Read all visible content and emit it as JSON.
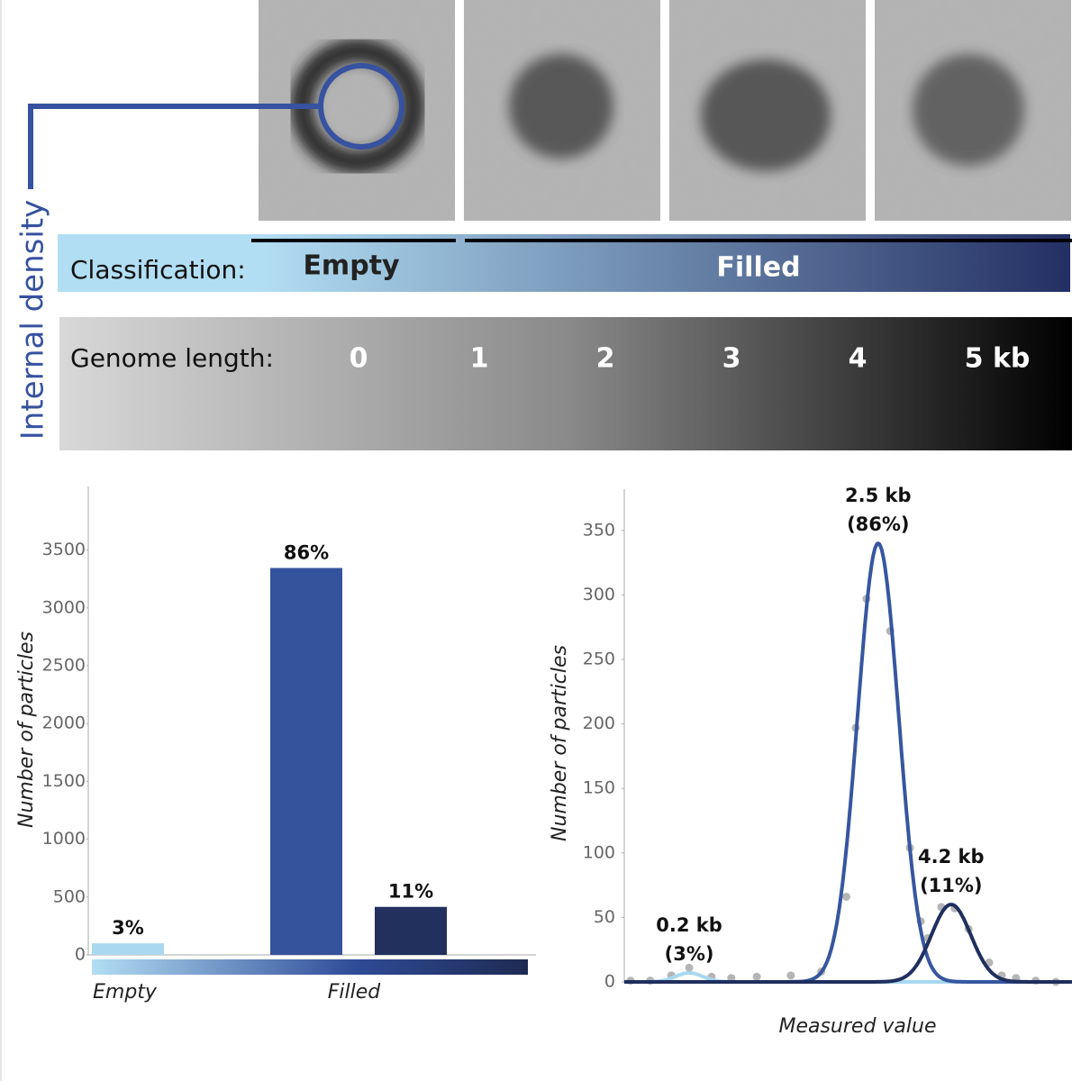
{
  "figure": {
    "side_label": "Internal density",
    "classification": {
      "label": "Classification:",
      "classes": [
        "Empty",
        "Filled"
      ]
    },
    "genome_length": {
      "label": "Genome length:",
      "ticks": [
        "0",
        "1",
        "2",
        "3",
        "4",
        "5 kb"
      ]
    }
  },
  "chart_data": [
    {
      "type": "bar",
      "y_label": "Number of particles",
      "categories": [
        null,
        null,
        null
      ],
      "values": [
        100,
        3345,
        415
      ],
      "annotations": [
        "3%",
        "86%",
        "11%"
      ],
      "colors": [
        "#a9d8f0",
        "#34539c",
        "#22305e"
      ],
      "group_labels": [
        "Empty",
        "Filled"
      ],
      "ylim": [
        0,
        4050
      ],
      "yticks": [
        0,
        500,
        1000,
        1500,
        2000,
        2500,
        3000,
        3500
      ]
    },
    {
      "type": "scatter",
      "x_label": "Measured value",
      "y_label": "Number of particles",
      "xlim": [
        0,
        100
      ],
      "ylim": [
        0,
        382
      ],
      "yticks": [
        0,
        50,
        100,
        150,
        200,
        250,
        300,
        350
      ],
      "point_color": "#b5b5b5",
      "x": [
        1.4,
        5.8,
        10.5,
        14.5,
        19.5,
        23.9,
        29.6,
        37.2,
        44.0,
        49.6,
        51.7,
        54.1,
        59.4,
        63.8,
        66.2,
        67.8,
        70.8,
        73.8,
        76.9,
        81.5,
        84.3,
        87.5,
        91.9,
        96.4
      ],
      "values": [
        1,
        1,
        5,
        11,
        4,
        3,
        4,
        5,
        8,
        66,
        197,
        297,
        272,
        104,
        47,
        34,
        58,
        57,
        41,
        15,
        5,
        3,
        1,
        0
      ],
      "fits": [
        {
          "center": 14.5,
          "height": 7,
          "sigma": 3.0,
          "color": "#a8d8f0",
          "label": "0.2 kb",
          "share_label": "(3%)"
        },
        {
          "center": 56.7,
          "height": 340,
          "sigma": 4.6,
          "color": "#3656a0",
          "label": "2.5 kb",
          "share_label": "(86%)"
        },
        {
          "center": 73.0,
          "height": 60,
          "sigma": 4.4,
          "color": "#1f2f5e",
          "label": "4.2 kb",
          "share_label": "(11%)"
        }
      ]
    }
  ]
}
